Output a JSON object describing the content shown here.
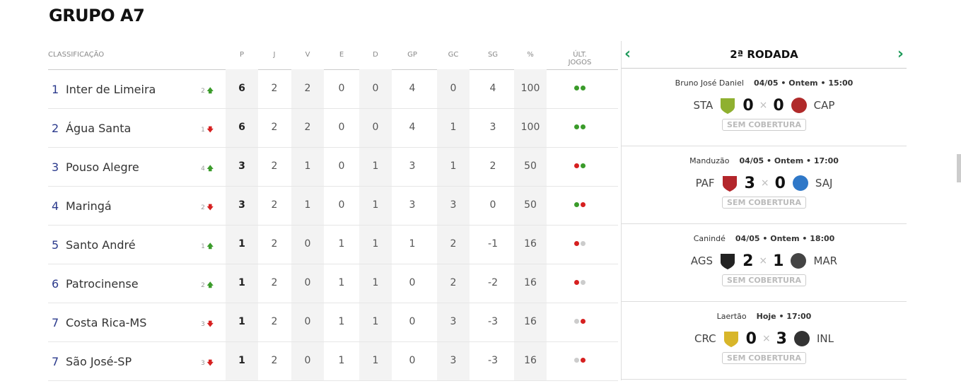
{
  "title": "GRUPO A7",
  "headers": [
    "CLASSIFICAÇÃO",
    "P",
    "J",
    "V",
    "E",
    "D",
    "GP",
    "GC",
    "SG",
    "%",
    "ÚLT. JOGOS"
  ],
  "rows": [
    {
      "pos": "1",
      "team": "Inter de Limeira",
      "var": "2",
      "dir": "up",
      "P": "6",
      "J": "2",
      "V": "2",
      "E": "0",
      "D": "0",
      "GP": "4",
      "GC": "0",
      "SG": "4",
      "pct": "100",
      "last": [
        "win",
        "win"
      ]
    },
    {
      "pos": "2",
      "team": "Água Santa",
      "var": "1",
      "dir": "down",
      "P": "6",
      "J": "2",
      "V": "2",
      "E": "0",
      "D": "0",
      "GP": "4",
      "GC": "1",
      "SG": "3",
      "pct": "100",
      "last": [
        "win",
        "win"
      ]
    },
    {
      "pos": "3",
      "team": "Pouso Alegre",
      "var": "4",
      "dir": "up",
      "P": "3",
      "J": "2",
      "V": "1",
      "E": "0",
      "D": "1",
      "GP": "3",
      "GC": "1",
      "SG": "2",
      "pct": "50",
      "last": [
        "loss",
        "win"
      ]
    },
    {
      "pos": "4",
      "team": "Maringá",
      "var": "2",
      "dir": "down",
      "P": "3",
      "J": "2",
      "V": "1",
      "E": "0",
      "D": "1",
      "GP": "3",
      "GC": "3",
      "SG": "0",
      "pct": "50",
      "last": [
        "win",
        "loss"
      ]
    },
    {
      "pos": "5",
      "team": "Santo André",
      "var": "1",
      "dir": "up",
      "P": "1",
      "J": "2",
      "V": "0",
      "E": "1",
      "D": "1",
      "GP": "1",
      "GC": "2",
      "SG": "-1",
      "pct": "16",
      "last": [
        "loss",
        "draw"
      ]
    },
    {
      "pos": "6",
      "team": "Patrocinense",
      "var": "2",
      "dir": "up",
      "P": "1",
      "J": "2",
      "V": "0",
      "E": "1",
      "D": "1",
      "GP": "0",
      "GC": "2",
      "SG": "-2",
      "pct": "16",
      "last": [
        "loss",
        "draw"
      ]
    },
    {
      "pos": "7",
      "team": "Costa Rica-MS",
      "var": "3",
      "dir": "down",
      "P": "1",
      "J": "2",
      "V": "0",
      "E": "1",
      "D": "1",
      "GP": "0",
      "GC": "3",
      "SG": "-3",
      "pct": "16",
      "last": [
        "draw",
        "loss"
      ]
    },
    {
      "pos": "7",
      "team": "São José-SP",
      "var": "3",
      "dir": "down",
      "P": "1",
      "J": "2",
      "V": "0",
      "E": "1",
      "D": "1",
      "GP": "0",
      "GC": "3",
      "SG": "-3",
      "pct": "16",
      "last": [
        "draw",
        "loss"
      ]
    }
  ],
  "colors": {
    "win": "#3a9b2a",
    "loss": "#d62020",
    "draw": "#cccccc",
    "accent": "#1e9a5a"
  },
  "round": {
    "title": "2ª RODADA",
    "prev_icon": "chevron-left-icon",
    "next_icon": "chevron-right-icon",
    "games": [
      {
        "venue": "Bruno José Daniel",
        "when": "04/05 • Ontem • 15:00",
        "home": "STA",
        "hs": "0",
        "as": "0",
        "away": "CAP",
        "hc": "#8fb030",
        "ac": "#b02a2a",
        "label": "SEM COBERTURA"
      },
      {
        "venue": "Manduzão",
        "when": "04/05 • Ontem • 17:00",
        "home": "PAF",
        "hs": "3",
        "as": "0",
        "away": "SAJ",
        "hc": "#b3262b",
        "ac": "#2f78c8",
        "label": "SEM COBERTURA"
      },
      {
        "venue": "Canindé",
        "when": "04/05 • Ontem • 18:00",
        "home": "AGS",
        "hs": "2",
        "as": "1",
        "away": "MAR",
        "hc": "#222222",
        "ac": "#444444",
        "label": "SEM COBERTURA"
      },
      {
        "venue": "Laertão",
        "when": "Hoje • 17:00",
        "home": "CRC",
        "hs": "0",
        "as": "3",
        "away": "INL",
        "hc": "#d8b62a",
        "ac": "#333333",
        "label": "SEM COBERTURA"
      }
    ]
  }
}
